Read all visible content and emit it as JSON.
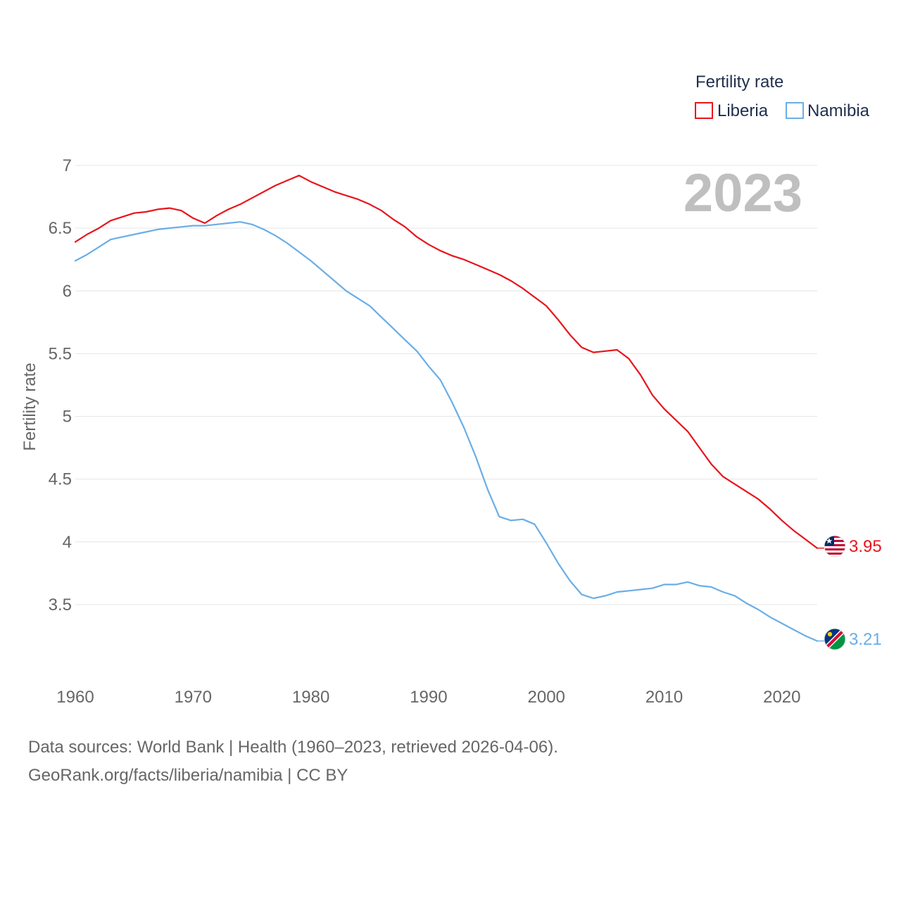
{
  "chart_data": {
    "type": "line",
    "title": "",
    "year_label": "2023",
    "ylabel": "Fertility rate",
    "xlabel": "",
    "ylim": [
      3.0,
      7.0
    ],
    "xlim": [
      1960,
      2023
    ],
    "y_ticks": [
      3.5,
      4,
      4.5,
      5,
      5.5,
      6,
      6.5,
      7
    ],
    "y_tick_labels": [
      "3.5",
      "4",
      "4.5",
      "5",
      "5.5",
      "6",
      "6.5",
      "7"
    ],
    "x_ticks": [
      1960,
      1970,
      1980,
      1990,
      2000,
      2010,
      2020
    ],
    "x_tick_labels": [
      "1960",
      "1970",
      "1980",
      "1990",
      "2000",
      "2010",
      "2020"
    ],
    "grid": true,
    "legend": {
      "title": "Fertility rate",
      "placement": "top-right"
    },
    "x": [
      1960,
      1961,
      1962,
      1963,
      1964,
      1965,
      1966,
      1967,
      1968,
      1969,
      1970,
      1971,
      1972,
      1973,
      1974,
      1975,
      1976,
      1977,
      1978,
      1979,
      1980,
      1981,
      1982,
      1983,
      1984,
      1985,
      1986,
      1987,
      1988,
      1989,
      1990,
      1991,
      1992,
      1993,
      1994,
      1995,
      1996,
      1997,
      1998,
      1999,
      2000,
      2001,
      2002,
      2003,
      2004,
      2005,
      2006,
      2007,
      2008,
      2009,
      2010,
      2011,
      2012,
      2013,
      2014,
      2015,
      2016,
      2017,
      2018,
      2019,
      2020,
      2021,
      2022,
      2023
    ],
    "series": [
      {
        "name": "Liberia",
        "color": "#e8151b",
        "end_label": "3.95",
        "flag": "liberia-flag",
        "values": [
          6.39,
          6.45,
          6.5,
          6.56,
          6.59,
          6.62,
          6.63,
          6.65,
          6.66,
          6.64,
          6.58,
          6.54,
          6.6,
          6.65,
          6.69,
          6.74,
          6.79,
          6.84,
          6.88,
          6.92,
          6.87,
          6.83,
          6.79,
          6.76,
          6.73,
          6.69,
          6.64,
          6.57,
          6.51,
          6.43,
          6.37,
          6.32,
          6.28,
          6.25,
          6.21,
          6.17,
          6.13,
          6.08,
          6.02,
          5.95,
          5.88,
          5.77,
          5.65,
          5.55,
          5.51,
          5.52,
          5.53,
          5.46,
          5.33,
          5.17,
          5.06,
          4.97,
          4.88,
          4.75,
          4.62,
          4.52,
          4.46,
          4.4,
          4.34,
          4.26,
          4.17,
          4.09,
          4.02,
          3.95
        ]
      },
      {
        "name": "Namibia",
        "color": "#6aaee6",
        "end_label": "3.21",
        "flag": "namibia-flag",
        "values": [
          6.24,
          6.29,
          6.35,
          6.41,
          6.43,
          6.45,
          6.47,
          6.49,
          6.5,
          6.51,
          6.52,
          6.52,
          6.53,
          6.54,
          6.55,
          6.53,
          6.49,
          6.44,
          6.38,
          6.31,
          6.24,
          6.16,
          6.08,
          6.0,
          5.94,
          5.88,
          5.79,
          5.7,
          5.61,
          5.52,
          5.4,
          5.29,
          5.11,
          4.91,
          4.68,
          4.42,
          4.2,
          4.17,
          4.18,
          4.14,
          3.99,
          3.83,
          3.69,
          3.58,
          3.55,
          3.57,
          3.6,
          3.61,
          3.62,
          3.63,
          3.66,
          3.66,
          3.68,
          3.65,
          3.64,
          3.6,
          3.57,
          3.51,
          3.46,
          3.4,
          3.35,
          3.3,
          3.25,
          3.21
        ]
      }
    ]
  },
  "footer": {
    "line1": "Data sources: World Bank | Health (1960–2023, retrieved 2026-04-06).",
    "line2": "GeoRank.org/facts/liberia/namibia | CC BY"
  }
}
